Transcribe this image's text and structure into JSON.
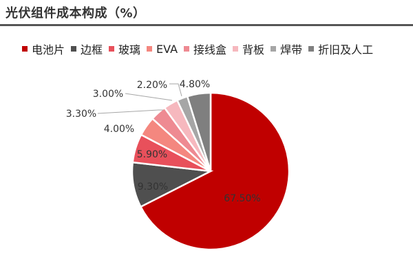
{
  "title": "光伏组件成本构成（%）",
  "chart_data": {
    "type": "pie",
    "title": "光伏组件成本构成（%）",
    "categories": [
      "电池片",
      "边框",
      "玻璃",
      "EVA",
      "接线盒",
      "背板",
      "焊带",
      "折旧及人工"
    ],
    "values": [
      67.5,
      9.3,
      5.9,
      4.0,
      3.3,
      3.0,
      2.2,
      4.8
    ],
    "labels": [
      "67.50%",
      "9.30%",
      "5.90%",
      "4.00%",
      "3.30%",
      "3.00%",
      "2.20%",
      "4.80%"
    ],
    "colors": [
      "#C00000",
      "#4F4F4F",
      "#E8505B",
      "#F4877F",
      "#EE8A92",
      "#F6B8BE",
      "#A6A6A6",
      "#7F7F7F"
    ],
    "legend_position": "top",
    "start_angle_deg": 0,
    "direction": "clockwise"
  },
  "legend": {
    "items": [
      {
        "label": "电池片",
        "color": "#C00000"
      },
      {
        "label": "边框",
        "color": "#4F4F4F"
      },
      {
        "label": "玻璃",
        "color": "#E8505B"
      },
      {
        "label": "EVA",
        "color": "#F4877F"
      },
      {
        "label": "接线盒",
        "color": "#EE8A92"
      },
      {
        "label": "背板",
        "color": "#F6B8BE"
      },
      {
        "label": "焊带",
        "color": "#A6A6A6"
      },
      {
        "label": "折旧及人工",
        "color": "#7F7F7F"
      }
    ]
  }
}
